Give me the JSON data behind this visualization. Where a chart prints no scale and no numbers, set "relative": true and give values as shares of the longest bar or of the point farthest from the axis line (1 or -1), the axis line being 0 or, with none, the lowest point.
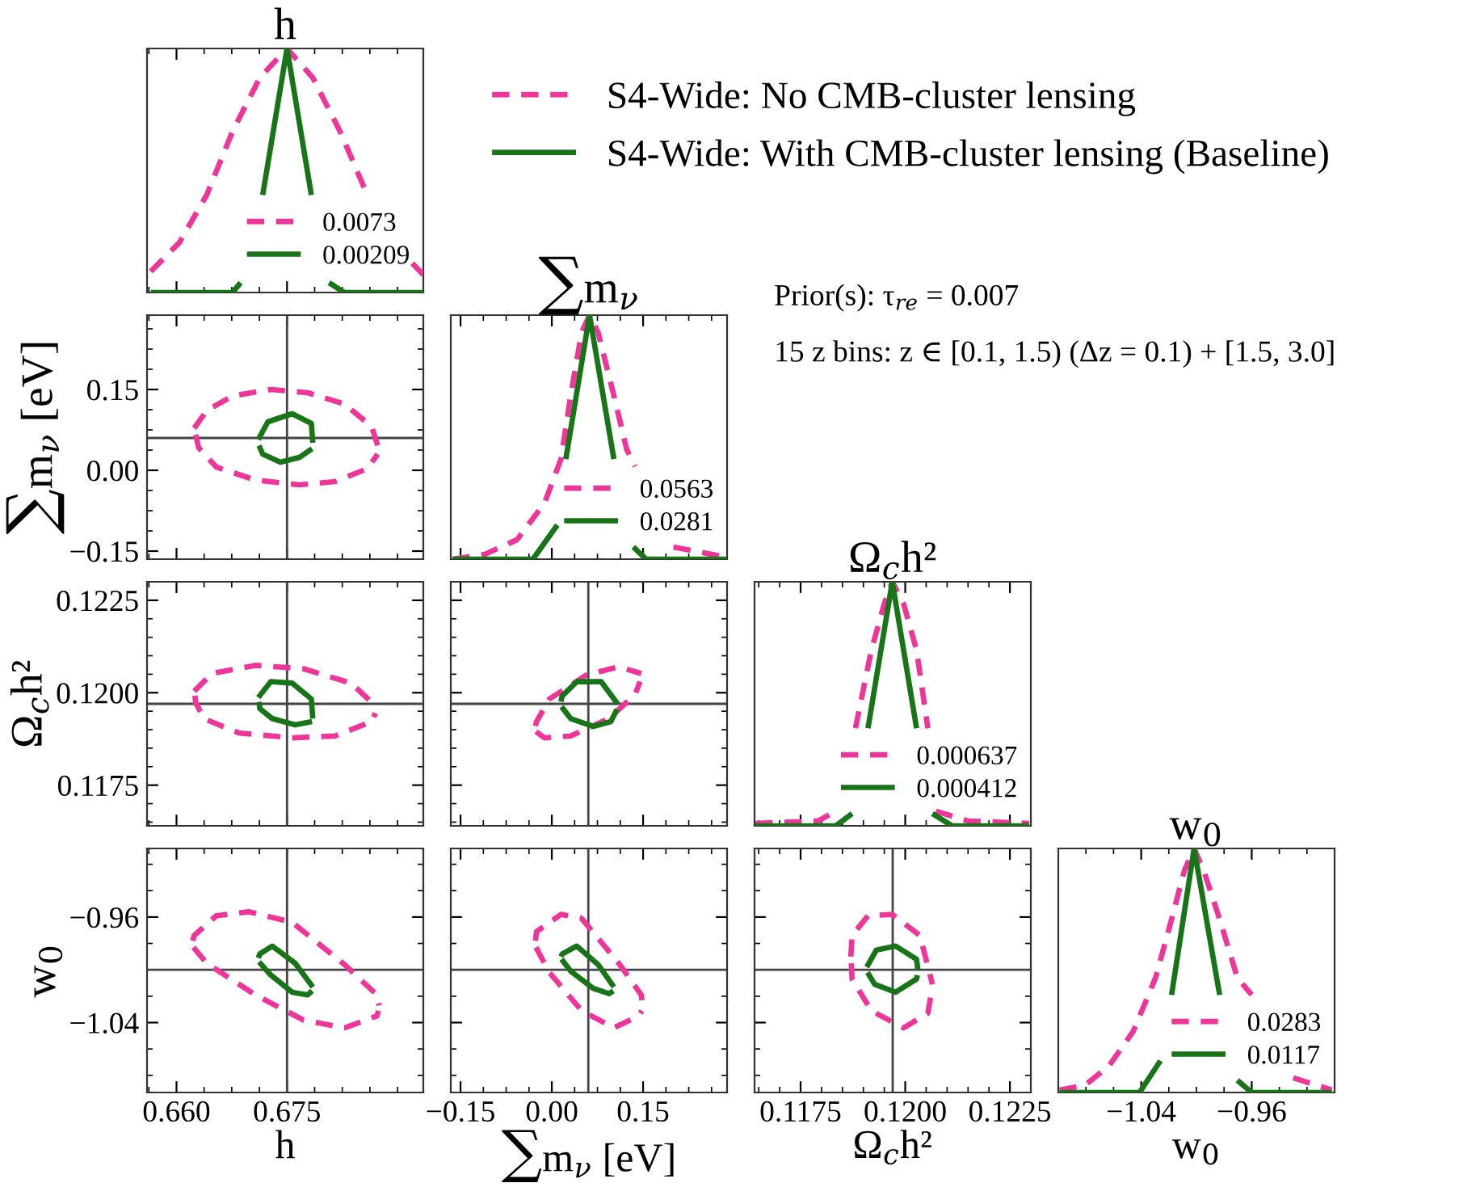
{
  "chart_data": [
    {
      "type": "line",
      "title": "h",
      "relative": true,
      "xlim": [
        0.656,
        0.6935
      ],
      "xticks": [
        {
          "value": 0.66,
          "label": null
        },
        {
          "value": 0.675,
          "label": null
        }
      ],
      "tick_labels": false,
      "legend": "bottom right",
      "series": [
        {
          "name": "0.0073",
          "color": "#f0359a",
          "line_style": "dashed",
          "x": [
            0.6565,
            0.6604,
            0.6641,
            0.6676,
            0.6713,
            0.675,
            0.6785,
            0.6822,
            0.6859,
            0.6887,
            0.692,
            0.6935
          ],
          "values": [
            0.086,
            0.205,
            0.4,
            0.66,
            0.88,
            1.0,
            0.88,
            0.66,
            0.4,
            null,
            0.12,
            0.073
          ]
        },
        {
          "name": "0.00209",
          "color": "#177517",
          "line_style": "solid",
          "x": [
            0.6565,
            0.6676,
            0.6687,
            0.6702,
            0.6717,
            0.675,
            0.6783,
            0.6796,
            0.6807,
            0.6828,
            0.6935
          ],
          "values": [
            0,
            0,
            0.04,
            null,
            0.4,
            1.0,
            0.4,
            null,
            0.04,
            0,
            0
          ]
        }
      ]
    },
    {
      "type": "line",
      "ylabel": "∑m$_{ν}$ [eV]",
      "xlim": [
        0.656,
        0.6935
      ],
      "ylim": [
        -0.165,
        0.288
      ],
      "xticks": [
        {
          "value": 0.66,
          "label": null
        },
        {
          "value": 0.675,
          "label": null
        }
      ],
      "yticks": [
        {
          "value": -0.15,
          "label": "−0.15"
        },
        {
          "value": 0,
          "label": "0.00"
        },
        {
          "value": 0.15,
          "label": "0.15"
        }
      ],
      "tick_labels": "y",
      "legend": "top right",
      "ref_lines": [
        {
          "axis": "x",
          "value": 0.675,
          "color": "#444444"
        },
        {
          "axis": "y",
          "value": 0.06,
          "color": "#444444"
        }
      ],
      "series": [
        {
          "name": "S4-Wide: No CMB-cluster lensing",
          "color": "#f0359a",
          "line_style": "dashed",
          "x": [
            0.6624,
            0.6641,
            0.6676,
            0.6728,
            0.6778,
            0.6828,
            0.6865,
            0.6874
          ],
          "values": [
            0.078,
            0.111,
            0.138,
            0.15,
            0.144,
            0.123,
            0.081,
            0.042
          ]
        },
        {
          "color": "#f0359a",
          "line_style": "dashed",
          "x": [
            0.6626,
            0.663,
            0.6654,
            0.6707,
            0.6767,
            0.6815,
            0.6859,
            0.6873
          ],
          "values": [
            0.066,
            0.042,
            0.006,
            -0.018,
            -0.027,
            -0.021,
            0.003,
            0.03
          ]
        },
        {
          "name": "S4-Wide: With CMB-cluster lensing (Baseline)",
          "color": "#177517",
          "line_style": "solid",
          "x": [
            0.6711,
            0.6724,
            0.6757,
            0.6783,
            0.6785
          ],
          "values": [
            0.057,
            0.09,
            0.105,
            0.087,
            0.051
          ]
        },
        {
          "color": "#177517",
          "line_style": "solid",
          "x": [
            0.6712,
            0.6717,
            0.6741,
            0.6767,
            0.6784
          ],
          "values": [
            0.046,
            0.03,
            0.015,
            0.024,
            0.04
          ]
        }
      ]
    },
    {
      "type": "line",
      "title": "∑m$_{ν}$",
      "relative": true,
      "xlim": [
        -0.166,
        0.288
      ],
      "xticks": [
        {
          "value": -0.15,
          "label": null
        },
        {
          "value": 0,
          "label": null
        },
        {
          "value": 0.15,
          "label": null
        }
      ],
      "tick_labels": false,
      "legend": "bottom right",
      "annotations": [
        "Prior(s): τ$_{re}$ = 0.007",
        "15 z bins: z ∈ [0.1, 1.5) (Δz = 0.1) + [1.5, 3.0]"
      ],
      "series": [
        {
          "name": "0.0563",
          "color": "#f0359a",
          "line_style": "dashed",
          "x": [
            -0.163,
            -0.11,
            -0.057,
            -0.012,
            0.015,
            0.031,
            0.049,
            0.062,
            0.076,
            0.102,
            0.123,
            0.137,
            0.169,
            0.2,
            0.283
          ],
          "values": [
            0.0,
            0.02,
            0.08,
            0.23,
            0.41,
            0.67,
            0.93,
            1.0,
            0.93,
            0.67,
            0.45,
            0.38,
            null,
            0.05,
            0.01
          ]
        },
        {
          "name": "0.0281",
          "color": "#177517",
          "line_style": "solid",
          "x": [
            -0.163,
            -0.031,
            0.009,
            0.015,
            0.023,
            0.062,
            0.102,
            0.118,
            0.134,
            0.155,
            0.288
          ],
          "values": [
            0,
            0,
            0.14,
            null,
            0.41,
            1.0,
            0.41,
            null,
            0.05,
            0,
            0
          ]
        }
      ]
    },
    {
      "type": "line",
      "ylabel": "Ω$_{c}$h²",
      "xlim": [
        0.656,
        0.6935
      ],
      "ylim": [
        0.1164,
        0.123
      ],
      "xticks": [
        {
          "value": 0.66,
          "label": null
        },
        {
          "value": 0.675,
          "label": null
        }
      ],
      "yticks": [
        {
          "value": 0.1175,
          "label": "0.1175"
        },
        {
          "value": 0.12,
          "label": "0.1200"
        },
        {
          "value": 0.1225,
          "label": "0.1225"
        }
      ],
      "tick_labels": "y",
      "ref_lines": [
        {
          "axis": "x",
          "value": 0.675,
          "color": "#444444"
        },
        {
          "axis": "y",
          "value": 0.1197,
          "color": "#444444"
        }
      ],
      "series": [
        {
          "color": "#f0359a",
          "line_style": "dashed",
          "x": [
            0.6624,
            0.6648,
            0.6707,
            0.6772,
            0.6837,
            0.6872
          ],
          "values": [
            0.12004,
            0.12052,
            0.12074,
            0.12065,
            0.12026,
            0.11961
          ]
        },
        {
          "color": "#f0359a",
          "line_style": "dashed",
          "x": [
            0.6625,
            0.6626,
            0.6637,
            0.6685,
            0.6757,
            0.6815,
            0.6865,
            0.687
          ],
          "values": [
            0.11992,
            0.11974,
            0.1193,
            0.11891,
            0.11878,
            0.11883,
            0.11922,
            0.11945
          ]
        },
        {
          "color": "#177517",
          "line_style": "solid",
          "x": [
            0.6711,
            0.6728,
            0.6757,
            0.6783,
            0.6785
          ],
          "values": [
            0.11987,
            0.1203,
            0.12026,
            0.11983,
            0.1193
          ]
        },
        {
          "color": "#177517",
          "line_style": "solid",
          "x": [
            0.6712,
            0.6713,
            0.673,
            0.6761,
            0.6784
          ],
          "values": [
            0.11975,
            0.11957,
            0.1193,
            0.11913,
            0.11922
          ]
        }
      ]
    },
    {
      "type": "line",
      "xlim": [
        -0.166,
        0.288
      ],
      "ylim": [
        0.1164,
        0.123
      ],
      "xticks": [
        {
          "value": -0.15,
          "label": null
        },
        {
          "value": 0,
          "label": null
        },
        {
          "value": 0.15,
          "label": null
        }
      ],
      "yticks": [
        {
          "value": 0.1175,
          "label": null
        },
        {
          "value": 0.12,
          "label": null
        },
        {
          "value": 0.1225,
          "label": null
        }
      ],
      "tick_labels": false,
      "ref_lines": [
        {
          "axis": "x",
          "value": 0.06,
          "color": "#444444"
        },
        {
          "axis": "y",
          "value": 0.1197,
          "color": "#444444"
        }
      ],
      "series": [
        {
          "color": "#f0359a",
          "line_style": "dashed",
          "x": [
            -0.027,
            -0.025,
            -0.004,
            0.057,
            0.11,
            0.147
          ],
          "values": [
            0.1191,
            0.11922,
            0.11983,
            0.12048,
            0.1207,
            0.12052
          ]
        },
        {
          "color": "#f0359a",
          "line_style": "dashed",
          "x": [
            -0.026,
            -0.012,
            0.031,
            0.094,
            0.137,
            0.145
          ],
          "values": [
            0.11895,
            0.11878,
            0.11883,
            0.1193,
            0.11996,
            0.1203
          ]
        },
        {
          "color": "#177517",
          "line_style": "solid",
          "x": [
            0.015,
            0.017,
            0.041,
            0.081,
            0.108
          ],
          "values": [
            0.11976,
            0.11991,
            0.1203,
            0.1203,
            0.1197
          ]
        },
        {
          "color": "#177517",
          "line_style": "solid",
          "x": [
            0.016,
            0.031,
            0.068,
            0.097,
            0.107
          ],
          "values": [
            0.11962,
            0.1193,
            0.11909,
            0.11922,
            0.11955
          ]
        }
      ]
    },
    {
      "type": "line",
      "title": "Ω$_{c}$h²",
      "relative": true,
      "xlim": [
        0.1164,
        0.123
      ],
      "xticks": [
        {
          "value": 0.1175,
          "label": null
        },
        {
          "value": 0.12,
          "label": null
        },
        {
          "value": 0.1225,
          "label": null
        }
      ],
      "tick_labels": false,
      "legend": "bottom right",
      "series": [
        {
          "name": "0.000637",
          "color": "#f0359a",
          "line_style": "dashed",
          "x": [
            0.11642,
            0.11792,
            0.11834,
            0.11858,
            0.11881,
            0.11919,
            0.1195,
            0.11969,
            0.11996,
            0.12027,
            0.12054,
            0.12065,
            0.12073,
            0.1215,
            0.12296
          ],
          "values": [
            0.01,
            0.02,
            0.06,
            null,
            0.4,
            0.72,
            0.91,
            1.0,
            0.91,
            0.72,
            0.4,
            null,
            0.06,
            0.02,
            0.01
          ]
        },
        {
          "name": "0.000412",
          "color": "#177517",
          "line_style": "solid",
          "x": [
            0.11642,
            0.11834,
            0.11873,
            0.11889,
            0.11911,
            0.11969,
            0.12027,
            0.12046,
            0.12065,
            0.12112,
            0.12296
          ],
          "values": [
            0,
            0,
            0.05,
            null,
            0.4,
            1.0,
            0.4,
            null,
            0.05,
            0,
            0
          ]
        }
      ]
    },
    {
      "type": "line",
      "xlabel": "h",
      "ylabel": "w$_{0}$",
      "xlim": [
        0.656,
        0.6935
      ],
      "ylim": [
        -1.093,
        -0.908
      ],
      "xticks": [
        {
          "value": 0.66,
          "label": "0.660"
        },
        {
          "value": 0.675,
          "label": "0.675"
        }
      ],
      "yticks": [
        {
          "value": -1.04,
          "label": "−1.04"
        },
        {
          "value": -0.96,
          "label": "−0.96"
        }
      ],
      "ref_lines": [
        {
          "axis": "x",
          "value": 0.675,
          "color": "#444444"
        },
        {
          "axis": "y",
          "value": -1.0,
          "color": "#444444"
        }
      ],
      "series": [
        {
          "color": "#f0359a",
          "line_style": "dashed",
          "x": [
            0.6622,
            0.6624,
            0.6654,
            0.6698,
            0.6757,
            0.6828,
            0.6872,
            0.6875
          ],
          "values": [
            -0.978,
            -0.974,
            -0.959,
            -0.956,
            -0.964,
            -0.996,
            -1.019,
            -1.027
          ]
        },
        {
          "color": "#f0359a",
          "line_style": "dashed",
          "x": [
            0.6623,
            0.6641,
            0.6707,
            0.6772,
            0.6828,
            0.6872,
            0.6874
          ],
          "values": [
            -0.983,
            -0.995,
            -1.019,
            -1.038,
            -1.044,
            -1.035,
            -1.031
          ]
        },
        {
          "color": "#177517",
          "line_style": "solid",
          "x": [
            0.6711,
            0.6713,
            0.673,
            0.6761,
            0.6785
          ],
          "values": [
            -0.991,
            -0.988,
            -0.982,
            -0.995,
            -1.013
          ]
        },
        {
          "color": "#177517",
          "line_style": "solid",
          "x": [
            0.6712,
            0.6728,
            0.6757,
            0.6778,
            0.6784
          ],
          "values": [
            -0.994,
            -1.004,
            -1.017,
            -1.019,
            -1.016
          ]
        }
      ]
    },
    {
      "type": "line",
      "xlabel": "∑m$_{ν}$ [eV]",
      "xlim": [
        -0.166,
        0.288
      ],
      "ylim": [
        -1.093,
        -0.908
      ],
      "xticks": [
        {
          "value": -0.15,
          "label": "−0.15"
        },
        {
          "value": 0,
          "label": "0.00"
        },
        {
          "value": 0.15,
          "label": "0.15"
        }
      ],
      "yticks": [
        {
          "value": -1.04,
          "label": null
        },
        {
          "value": -0.96,
          "label": null
        }
      ],
      "tick_labels": "x",
      "ref_lines": [
        {
          "axis": "x",
          "value": 0.06,
          "color": "#444444"
        },
        {
          "axis": "y",
          "value": -1.0,
          "color": "#444444"
        }
      ],
      "series": [
        {
          "color": "#f0359a",
          "line_style": "dashed",
          "x": [
            -0.027,
            -0.025,
            0.015,
            0.049,
            0.11,
            0.147,
            0.149
          ],
          "values": [
            -0.978,
            -0.971,
            -0.958,
            -0.961,
            -0.995,
            -1.019,
            -1.027
          ]
        },
        {
          "color": "#f0359a",
          "line_style": "dashed",
          "x": [
            -0.026,
            -0.004,
            0.049,
            0.102,
            0.142,
            0.148
          ],
          "values": [
            -0.983,
            -1.002,
            -1.031,
            -1.044,
            -1.035,
            -1.031
          ]
        },
        {
          "color": "#177517",
          "line_style": "solid",
          "x": [
            0.015,
            0.017,
            0.041,
            0.076,
            0.102
          ],
          "values": [
            -0.99,
            -0.988,
            -0.982,
            -0.996,
            -1.013
          ]
        },
        {
          "color": "#177517",
          "line_style": "solid",
          "x": [
            0.016,
            0.031,
            0.068,
            0.094,
            0.101
          ],
          "values": [
            -0.992,
            -1.001,
            -1.014,
            -1.018,
            -1.016
          ]
        }
      ]
    },
    {
      "type": "line",
      "xlabel": "Ω$_{c}$h²",
      "xlim": [
        0.1164,
        0.123
      ],
      "ylim": [
        -1.093,
        -0.908
      ],
      "xticks": [
        {
          "value": 0.1175,
          "label": "0.1175"
        },
        {
          "value": 0.12,
          "label": "0.1200"
        },
        {
          "value": 0.1225,
          "label": "0.1225"
        }
      ],
      "yticks": [
        {
          "value": -1.04,
          "label": null
        },
        {
          "value": -0.96,
          "label": null
        }
      ],
      "tick_labels": "x",
      "ref_lines": [
        {
          "axis": "x",
          "value": 0.1197,
          "color": "#444444"
        },
        {
          "axis": "y",
          "value": -1.0,
          "color": "#444444"
        }
      ],
      "series": [
        {
          "color": "#f0359a",
          "line_style": "dashed",
          "x": [
            0.1187,
            0.11873,
            0.11911,
            0.11969,
            0.12035,
            0.12065
          ],
          "values": [
            -0.99,
            -0.974,
            -0.959,
            -0.958,
            -0.974,
            -1.011
          ]
        },
        {
          "color": "#f0359a",
          "line_style": "dashed",
          "x": [
            0.11871,
            0.11873,
            0.11919,
            0.11996,
            0.12054,
            0.12063
          ],
          "values": [
            -0.995,
            -1.007,
            -1.031,
            -1.044,
            -1.033,
            -1.016
          ]
        },
        {
          "color": "#177517",
          "line_style": "solid",
          "x": [
            0.11908,
            0.11931,
            0.11977,
            0.12027,
            0.1203
          ],
          "values": [
            -0.998,
            -0.985,
            -0.982,
            -0.992,
            -1.0
          ]
        },
        {
          "color": "#177517",
          "line_style": "solid",
          "x": [
            0.1191,
            0.11927,
            0.11977,
            0.12027,
            0.12029
          ],
          "values": [
            -1.002,
            -1.011,
            -1.017,
            -1.007,
            -1.004
          ]
        }
      ]
    },
    {
      "type": "line",
      "title": "w$_{0}$",
      "xlabel": "w$_{0}$",
      "relative": true,
      "xlim": [
        -1.1,
        -0.9
      ],
      "xticks": [
        {
          "value": -1.04,
          "label": "−1.04"
        },
        {
          "value": -0.96,
          "label": "−0.96"
        }
      ],
      "tick_labels": "x",
      "legend": "bottom right",
      "series": [
        {
          "name": "0.0283",
          "color": "#f0359a",
          "line_style": "dashed",
          "x": [
            -1.0991,
            -1.0806,
            -1.0632,
            -1.0458,
            -1.0296,
            -1.018,
            -1.0087,
            -1.0017,
            -0.9948,
            -0.9832,
            -0.9704,
            -0.96,
            -0.9449,
            -0.9299,
            -0.902
          ],
          "values": [
            0.01,
            0.03,
            0.11,
            0.25,
            0.47,
            0.71,
            0.91,
            1.0,
            0.91,
            0.71,
            0.47,
            0.4,
            null,
            0.06,
            0.01
          ]
        },
        {
          "name": "0.0117",
          "color": "#177517",
          "line_style": "solid",
          "x": [
            -1.0991,
            -1.0412,
            -1.0261,
            -1.0226,
            -1.018,
            -1.0017,
            -0.9832,
            -0.9774,
            -0.9704,
            -0.96,
            -0.902
          ],
          "values": [
            0,
            0,
            0.13,
            null,
            0.4,
            1.0,
            0.4,
            null,
            0.05,
            0,
            0
          ]
        }
      ]
    }
  ]
}
